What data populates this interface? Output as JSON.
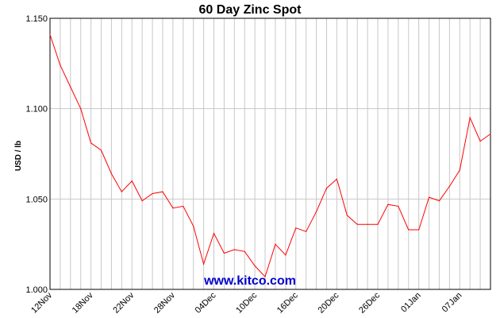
{
  "chart_data": {
    "type": "line",
    "title": "60 Day Zinc Spot",
    "ylabel": "USD / lb",
    "xlabel": "",
    "ylim": [
      1.0,
      1.15
    ],
    "yticks": [
      1.0,
      1.05,
      1.1,
      1.15
    ],
    "ytick_labels": [
      "1.000",
      "1.050",
      "1.100",
      "1.150"
    ],
    "grid": true,
    "x_tick_labels": [
      {
        "label": "12Nov",
        "index": 0
      },
      {
        "label": "18Nov",
        "index": 4
      },
      {
        "label": "22Nov",
        "index": 8
      },
      {
        "label": "28Nov",
        "index": 12
      },
      {
        "label": "04Dec",
        "index": 16
      },
      {
        "label": "10Dec",
        "index": 20
      },
      {
        "label": "16Dec",
        "index": 24
      },
      {
        "label": "20Dec",
        "index": 28
      },
      {
        "label": "26Dec",
        "index": 32
      },
      {
        "label": "01Jan",
        "index": 36
      },
      {
        "label": "07Jan",
        "index": 40
      }
    ],
    "series": [
      {
        "color": "#ff0000",
        "values": [
          1.141,
          1.124,
          1.112,
          1.1,
          1.081,
          1.077,
          1.064,
          1.054,
          1.06,
          1.049,
          1.053,
          1.054,
          1.045,
          1.046,
          1.035,
          1.014,
          1.031,
          1.02,
          1.022,
          1.021,
          1.013,
          1.007,
          1.025,
          1.019,
          1.034,
          1.032,
          1.043,
          1.056,
          1.061,
          1.041,
          1.036,
          1.036,
          1.036,
          1.047,
          1.046,
          1.033,
          1.033,
          1.051,
          1.049,
          1.057,
          1.066,
          1.095,
          1.082,
          1.086
        ]
      }
    ]
  },
  "watermark": "www.kitco.com"
}
